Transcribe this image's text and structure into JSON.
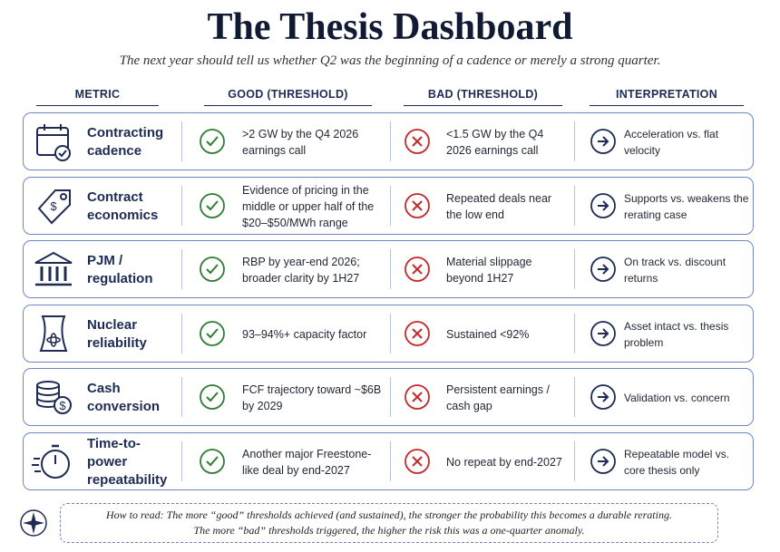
{
  "header": {
    "title": "The Thesis Dashboard",
    "subtitle": "The next year should tell us whether Q2 was the beginning of a cadence or merely a strong quarter."
  },
  "table": {
    "columns": [
      "METRIC",
      "GOOD (THRESHOLD)",
      "BAD (THRESHOLD)",
      "INTERPRETATION"
    ],
    "rows": [
      [
        "Contracting cadence",
        ">2 GW by the Q4 2026 earnings call",
        "<1.5 GW by the Q4 2026 earnings call",
        "Acceleration vs. flat velocity"
      ],
      [
        "Contract economics",
        "Evidence of pricing in the middle or upper half of the $20–$50/MWh range",
        "Repeated deals near the low end",
        "Supports vs. weakens the rerating case"
      ],
      [
        "PJM / regulation",
        "RBP by year-end 2026; broader clarity by 1H27",
        "Material slippage beyond 1H27",
        "On track vs. discount returns"
      ],
      [
        "Nuclear reliability",
        "93–94%+ capacity factor",
        "Sustained <92%",
        "Asset intact vs. thesis problem"
      ],
      [
        "Cash conversion",
        "FCF trajectory toward ~$6B by 2029",
        "Persistent earnings / cash gap",
        "Validation vs. concern"
      ],
      [
        "Time-to-power repeatability",
        "Another major Freestone-like deal by end-2027",
        "No repeat by end-2027",
        "Repeatable model vs. core thesis only"
      ]
    ]
  },
  "footer": {
    "lines": [
      "How to read: The more “good” thresholds achieved (and sustained), the stronger the probability this becomes a durable rerating.",
      "The more “bad” thresholds triggered, the higher the risk this was a one-quarter anomaly."
    ]
  }
}
